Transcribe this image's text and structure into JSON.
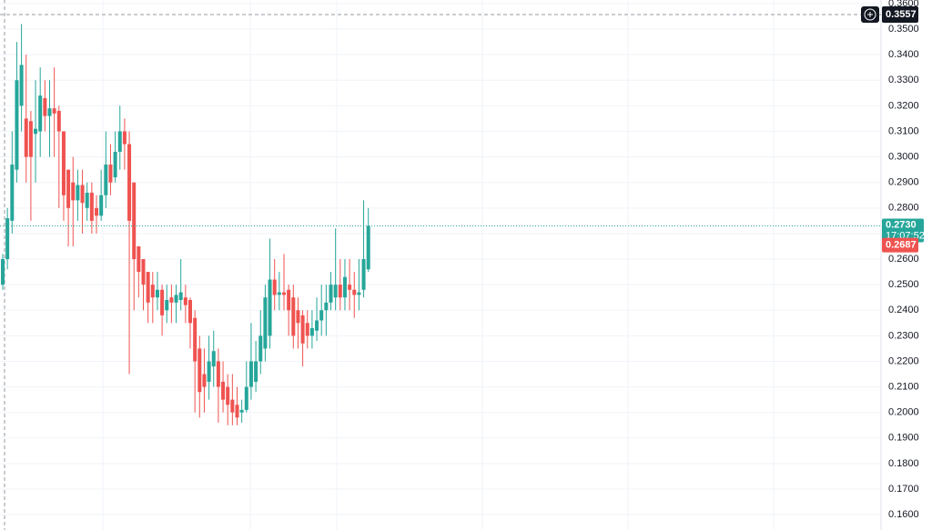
{
  "chart_data": {
    "type": "candlestick",
    "ylim": [
      0.154,
      0.3614
    ],
    "yticks": [
      {
        "value": 0.36,
        "label": "0.3600"
      },
      {
        "value": 0.35,
        "label": "0.3500"
      },
      {
        "value": 0.34,
        "label": "0.3400"
      },
      {
        "value": 0.33,
        "label": "0.3300"
      },
      {
        "value": 0.32,
        "label": "0.3200"
      },
      {
        "value": 0.31,
        "label": "0.3100"
      },
      {
        "value": 0.3,
        "label": "0.3000"
      },
      {
        "value": 0.29,
        "label": "0.2900"
      },
      {
        "value": 0.28,
        "label": "0.2800"
      },
      {
        "value": 0.27,
        "label": "0.2700"
      },
      {
        "value": 0.26,
        "label": "0.2600"
      },
      {
        "value": 0.25,
        "label": "0.2500"
      },
      {
        "value": 0.24,
        "label": "0.2400"
      },
      {
        "value": 0.23,
        "label": "0.2300"
      },
      {
        "value": 0.22,
        "label": "0.2200"
      },
      {
        "value": 0.21,
        "label": "0.2100"
      },
      {
        "value": 0.2,
        "label": "0.2000"
      },
      {
        "value": 0.19,
        "label": "0.1900"
      },
      {
        "value": 0.18,
        "label": "0.1800"
      },
      {
        "value": 0.17,
        "label": "0.1700"
      },
      {
        "value": 0.16,
        "label": "0.1600"
      }
    ],
    "grid": true,
    "up_color": "#26a69a",
    "down_color": "#ef5350",
    "open": [
      0.25,
      0.26,
      0.275,
      0.295,
      0.32,
      0.315,
      0.314,
      0.309,
      0.31,
      0.323,
      0.316,
      0.319,
      0.318,
      0.31,
      0.295,
      0.29,
      0.283,
      0.289,
      0.28,
      0.286,
      0.28,
      0.277,
      0.285,
      0.297,
      0.292,
      0.302,
      0.31,
      0.305,
      0.29,
      0.265,
      0.26,
      0.255,
      0.25,
      0.245,
      0.248,
      0.24,
      0.245,
      0.243,
      0.244,
      0.245,
      0.244,
      0.237,
      0.225,
      0.215,
      0.212,
      0.218,
      0.22,
      0.212,
      0.21,
      0.205,
      0.203,
      0.2,
      0.201,
      0.21,
      0.212,
      0.22,
      0.225,
      0.23,
      0.252,
      0.246,
      0.247,
      0.248,
      0.245,
      0.24,
      0.238,
      0.235,
      0.23,
      0.232,
      0.236,
      0.24,
      0.243,
      0.245,
      0.25,
      0.245,
      0.25,
      0.248,
      0.246,
      0.248,
      0.256
    ],
    "high": [
      0.262,
      0.28,
      0.31,
      0.345,
      0.352,
      0.34,
      0.318,
      0.33,
      0.335,
      0.33,
      0.33,
      0.335,
      0.32,
      0.31,
      0.295,
      0.3,
      0.295,
      0.295,
      0.29,
      0.29,
      0.285,
      0.295,
      0.31,
      0.305,
      0.31,
      0.32,
      0.315,
      0.31,
      0.29,
      0.265,
      0.26,
      0.255,
      0.255,
      0.255,
      0.25,
      0.25,
      0.25,
      0.25,
      0.26,
      0.25,
      0.245,
      0.24,
      0.23,
      0.225,
      0.23,
      0.232,
      0.225,
      0.22,
      0.215,
      0.215,
      0.21,
      0.205,
      0.22,
      0.235,
      0.228,
      0.24,
      0.25,
      0.268,
      0.26,
      0.255,
      0.262,
      0.25,
      0.25,
      0.245,
      0.24,
      0.24,
      0.24,
      0.245,
      0.25,
      0.25,
      0.255,
      0.272,
      0.26,
      0.26,
      0.26,
      0.255,
      0.26,
      0.283,
      0.28
    ],
    "low": [
      0.248,
      0.256,
      0.27,
      0.29,
      0.31,
      0.29,
      0.275,
      0.29,
      0.3,
      0.31,
      0.3,
      0.3,
      0.28,
      0.275,
      0.265,
      0.265,
      0.275,
      0.27,
      0.275,
      0.27,
      0.27,
      0.275,
      0.28,
      0.285,
      0.29,
      0.295,
      0.295,
      0.215,
      0.24,
      0.245,
      0.24,
      0.235,
      0.235,
      0.24,
      0.23,
      0.235,
      0.235,
      0.235,
      0.24,
      0.235,
      0.225,
      0.2,
      0.198,
      0.2,
      0.205,
      0.21,
      0.196,
      0.2,
      0.195,
      0.195,
      0.195,
      0.196,
      0.2,
      0.205,
      0.208,
      0.215,
      0.22,
      0.225,
      0.24,
      0.24,
      0.24,
      0.23,
      0.225,
      0.225,
      0.218,
      0.225,
      0.225,
      0.228,
      0.23,
      0.23,
      0.24,
      0.24,
      0.24,
      0.24,
      0.24,
      0.237,
      0.24,
      0.245,
      0.255
    ],
    "close": [
      0.26,
      0.276,
      0.297,
      0.33,
      0.336,
      0.3,
      0.3,
      0.311,
      0.324,
      0.316,
      0.319,
      0.317,
      0.31,
      0.285,
      0.28,
      0.283,
      0.289,
      0.282,
      0.286,
      0.275,
      0.277,
      0.285,
      0.297,
      0.29,
      0.302,
      0.31,
      0.305,
      0.275,
      0.26,
      0.255,
      0.25,
      0.243,
      0.245,
      0.248,
      0.238,
      0.244,
      0.243,
      0.246,
      0.247,
      0.242,
      0.235,
      0.22,
      0.208,
      0.21,
      0.22,
      0.224,
      0.21,
      0.205,
      0.203,
      0.2,
      0.198,
      0.201,
      0.21,
      0.22,
      0.22,
      0.23,
      0.245,
      0.252,
      0.246,
      0.247,
      0.246,
      0.24,
      0.23,
      0.235,
      0.227,
      0.23,
      0.233,
      0.236,
      0.24,
      0.243,
      0.25,
      0.25,
      0.245,
      0.253,
      0.248,
      0.246,
      0.247,
      0.26,
      0.273
    ],
    "last_price": {
      "value": 0.273,
      "label": "0.2730",
      "countdown": "17:07:52"
    },
    "prev_price": {
      "value": 0.2687,
      "label": "0.2687"
    },
    "crosshair": {
      "value": 0.3557,
      "label": "0.3557"
    }
  }
}
